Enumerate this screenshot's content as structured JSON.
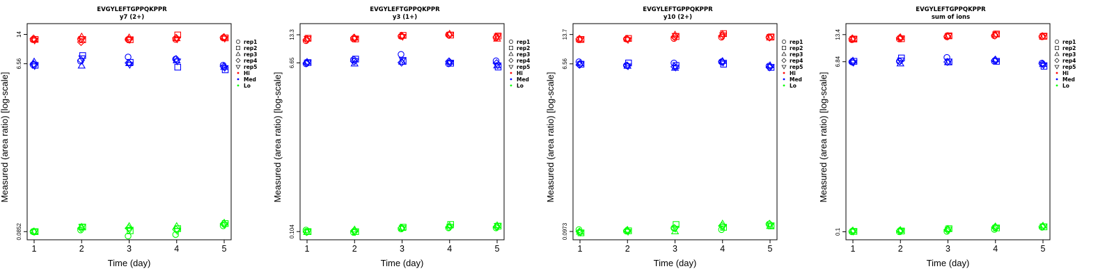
{
  "colors": {
    "Hi": "#ff0000",
    "Med": "#0000ff",
    "Lo": "#00ff00"
  },
  "legend": {
    "replicates": [
      "rep1",
      "rep2",
      "rep3",
      "rep4",
      "rep5"
    ],
    "levels": [
      "Hi",
      "Med",
      "Lo"
    ]
  },
  "chart_data": [
    {
      "type": "scatter",
      "title": "EVGYLEFTGPPQKPPR",
      "subtitle": "y7 (2+)",
      "xlabel": "Time (day)",
      "ylabel": "Measured (area ratio) [log-scale]",
      "y_scale": "log",
      "x_ticks": [
        "1",
        "2",
        "3",
        "4",
        "5"
      ],
      "y_ticks": [
        {
          "value": 0.0852,
          "label": "0.0852"
        },
        {
          "value": 6.56,
          "label": "6.56"
        },
        {
          "value": 14,
          "label": "14"
        }
      ],
      "ylim": [
        0.069,
        18.5
      ],
      "series": [
        {
          "level": "Hi",
          "replicates": [
            [
              12.2,
              12.4,
              12.3,
              12.3,
              12.8
            ],
            [
              12.3,
              12.2,
              12.2,
              13.8,
              12.8
            ],
            [
              12.3,
              13.2,
              12.9,
              12.6,
              13.0
            ],
            [
              12.6,
              11.5,
              12.3,
              12.8,
              13.0
            ],
            [
              12.0,
              12.5,
              12.2,
              12.4,
              12.6
            ]
          ]
        },
        {
          "level": "Med",
          "replicates": [
            [
              6.4,
              7.0,
              7.8,
              7.4,
              6.3
            ],
            [
              6.3,
              8.1,
              6.8,
              6.0,
              5.6
            ],
            [
              6.9,
              6.2,
              6.6,
              7.1,
              6.0
            ],
            [
              6.5,
              7.2,
              6.7,
              7.4,
              6.1
            ],
            [
              6.2,
              7.6,
              6.4,
              7.0,
              5.9
            ]
          ]
        },
        {
          "level": "Lo",
          "replicates": [
            [
              0.0852,
              0.089,
              0.076,
              0.079,
              0.099
            ],
            [
              0.0852,
              0.096,
              0.087,
              0.092,
              0.105
            ],
            [
              0.0852,
              0.096,
              0.098,
              0.098,
              0.107
            ],
            [
              0.0852,
              0.093,
              0.093,
              0.09,
              0.104
            ],
            [
              0.0852,
              0.097,
              0.09,
              0.087,
              0.102
            ]
          ]
        }
      ]
    },
    {
      "type": "scatter",
      "title": "EVGYLEFTGPPQKPPR",
      "subtitle": "y3 (1+)",
      "xlabel": "Time (day)",
      "ylabel": "Measured (area ratio) [log-scale]",
      "y_scale": "log",
      "x_ticks": [
        "1",
        "2",
        "3",
        "4",
        "5"
      ],
      "y_ticks": [
        {
          "value": 0.104,
          "label": "0.104"
        },
        {
          "value": 6.65,
          "label": "6.65"
        },
        {
          "value": 13.3,
          "label": "13.3"
        }
      ],
      "ylim": [
        0.085,
        17.5
      ],
      "series": [
        {
          "level": "Hi",
          "replicates": [
            [
              11.5,
              12.0,
              12.8,
              13.3,
              12.4
            ],
            [
              12.2,
              12.0,
              13.1,
              13.2,
              12.9
            ],
            [
              12.0,
              12.3,
              12.9,
              13.6,
              12.0
            ],
            [
              11.8,
              12.4,
              13.0,
              13.2,
              12.6
            ],
            [
              12.1,
              12.1,
              12.7,
              13.4,
              12.8
            ]
          ]
        },
        {
          "level": "Med",
          "replicates": [
            [
              6.5,
              7.2,
              8.2,
              6.5,
              7.0
            ],
            [
              6.7,
              7.3,
              6.9,
              6.6,
              6.0
            ],
            [
              6.8,
              6.5,
              6.8,
              6.8,
              6.2
            ],
            [
              6.6,
              6.9,
              6.7,
              6.9,
              6.6
            ],
            [
              6.7,
              7.0,
              7.2,
              6.7,
              6.3
            ]
          ]
        },
        {
          "level": "Lo",
          "replicates": [
            [
              0.108,
              0.102,
              0.111,
              0.114,
              0.114
            ],
            [
              0.104,
              0.104,
              0.116,
              0.124,
              0.119
            ],
            [
              0.102,
              0.109,
              0.113,
              0.12,
              0.121
            ],
            [
              0.103,
              0.106,
              0.114,
              0.116,
              0.117
            ],
            [
              0.104,
              0.103,
              0.114,
              0.118,
              0.12
            ]
          ]
        }
      ]
    },
    {
      "type": "scatter",
      "title": "EVGYLEFTGPPQKPPR",
      "subtitle": "y10 (2+)",
      "xlabel": "Time (day)",
      "ylabel": "Measured (area ratio) [log-scale]",
      "y_scale": "log",
      "x_ticks": [
        "1",
        "2",
        "3",
        "4",
        "5"
      ],
      "y_ticks": [
        {
          "value": 0.0973,
          "label": "0.0973"
        },
        {
          "value": 6.56,
          "label": "6.56"
        },
        {
          "value": 13.7,
          "label": "13.7"
        }
      ],
      "ylim": [
        0.079,
        18.0
      ],
      "series": [
        {
          "level": "Hi",
          "replicates": [
            [
              12.0,
              12.2,
              12.4,
              12.8,
              12.8
            ],
            [
              12.1,
              12.4,
              13.0,
              14.0,
              12.9
            ],
            [
              12.0,
              12.2,
              13.6,
              13.8,
              12.6
            ],
            [
              12.3,
              12.3,
              12.9,
              13.2,
              12.7
            ],
            [
              12.2,
              12.0,
              13.3,
              13.5,
              13.0
            ]
          ]
        },
        {
          "level": "Med",
          "replicates": [
            [
              6.9,
              6.3,
              6.7,
              6.9,
              6.2
            ],
            [
              6.5,
              6.7,
              6.3,
              6.5,
              6.0
            ],
            [
              6.6,
              6.2,
              5.9,
              7.0,
              6.3
            ],
            [
              6.4,
              6.3,
              6.1,
              6.9,
              6.0
            ],
            [
              6.5,
              6.2,
              6.0,
              6.8,
              6.1
            ]
          ]
        },
        {
          "level": "Lo",
          "replicates": [
            [
              0.102,
              0.098,
              0.106,
              0.102,
              0.117
            ],
            [
              0.094,
              0.099,
              0.116,
              0.108,
              0.112
            ],
            [
              0.096,
              0.101,
              0.097,
              0.118,
              0.111
            ],
            [
              0.097,
              0.1,
              0.106,
              0.112,
              0.118
            ],
            [
              0.095,
              0.097,
              0.105,
              0.11,
              0.114
            ]
          ]
        }
      ]
    },
    {
      "type": "scatter",
      "title": "EVGYLEFTGPPQKPPR",
      "subtitle": "sum of ions",
      "xlabel": "Time (day)",
      "ylabel": "Measured (area ratio) [log-scale]",
      "y_scale": "log",
      "x_ticks": [
        "1",
        "2",
        "3",
        "4",
        "5"
      ],
      "y_ticks": [
        {
          "value": 0.1,
          "label": "0.1"
        },
        {
          "value": 6.84,
          "label": "6.84"
        },
        {
          "value": 13.4,
          "label": "13.4"
        }
      ],
      "ylim": [
        0.082,
        17.6
      ],
      "series": [
        {
          "level": "Hi",
          "replicates": [
            [
              11.8,
              12.0,
              12.7,
              13.0,
              12.7
            ],
            [
              12.0,
              12.1,
              13.0,
              13.6,
              12.9
            ],
            [
              12.0,
              12.5,
              12.9,
              13.4,
              12.6
            ],
            [
              12.2,
              12.4,
              12.8,
              13.1,
              12.9
            ],
            [
              12.1,
              12.2,
              13.0,
              13.5,
              13.0
            ]
          ]
        },
        {
          "level": "Med",
          "replicates": [
            [
              6.8,
              6.9,
              7.6,
              6.9,
              6.6
            ],
            [
              6.9,
              7.5,
              6.8,
              6.9,
              6.1
            ],
            [
              7.0,
              6.5,
              6.7,
              7.2,
              6.4
            ],
            [
              6.8,
              6.9,
              6.8,
              7.1,
              6.5
            ],
            [
              6.7,
              7.1,
              6.9,
              7.0,
              6.3
            ]
          ]
        },
        {
          "level": "Lo",
          "replicates": [
            [
              0.1,
              0.1,
              0.101,
              0.106,
              0.112
            ],
            [
              0.101,
              0.102,
              0.108,
              0.11,
              0.113
            ],
            [
              0.103,
              0.104,
              0.107,
              0.114,
              0.116
            ],
            [
              0.102,
              0.103,
              0.105,
              0.112,
              0.114
            ],
            [
              0.101,
              0.102,
              0.106,
              0.111,
              0.115
            ]
          ]
        }
      ]
    }
  ]
}
